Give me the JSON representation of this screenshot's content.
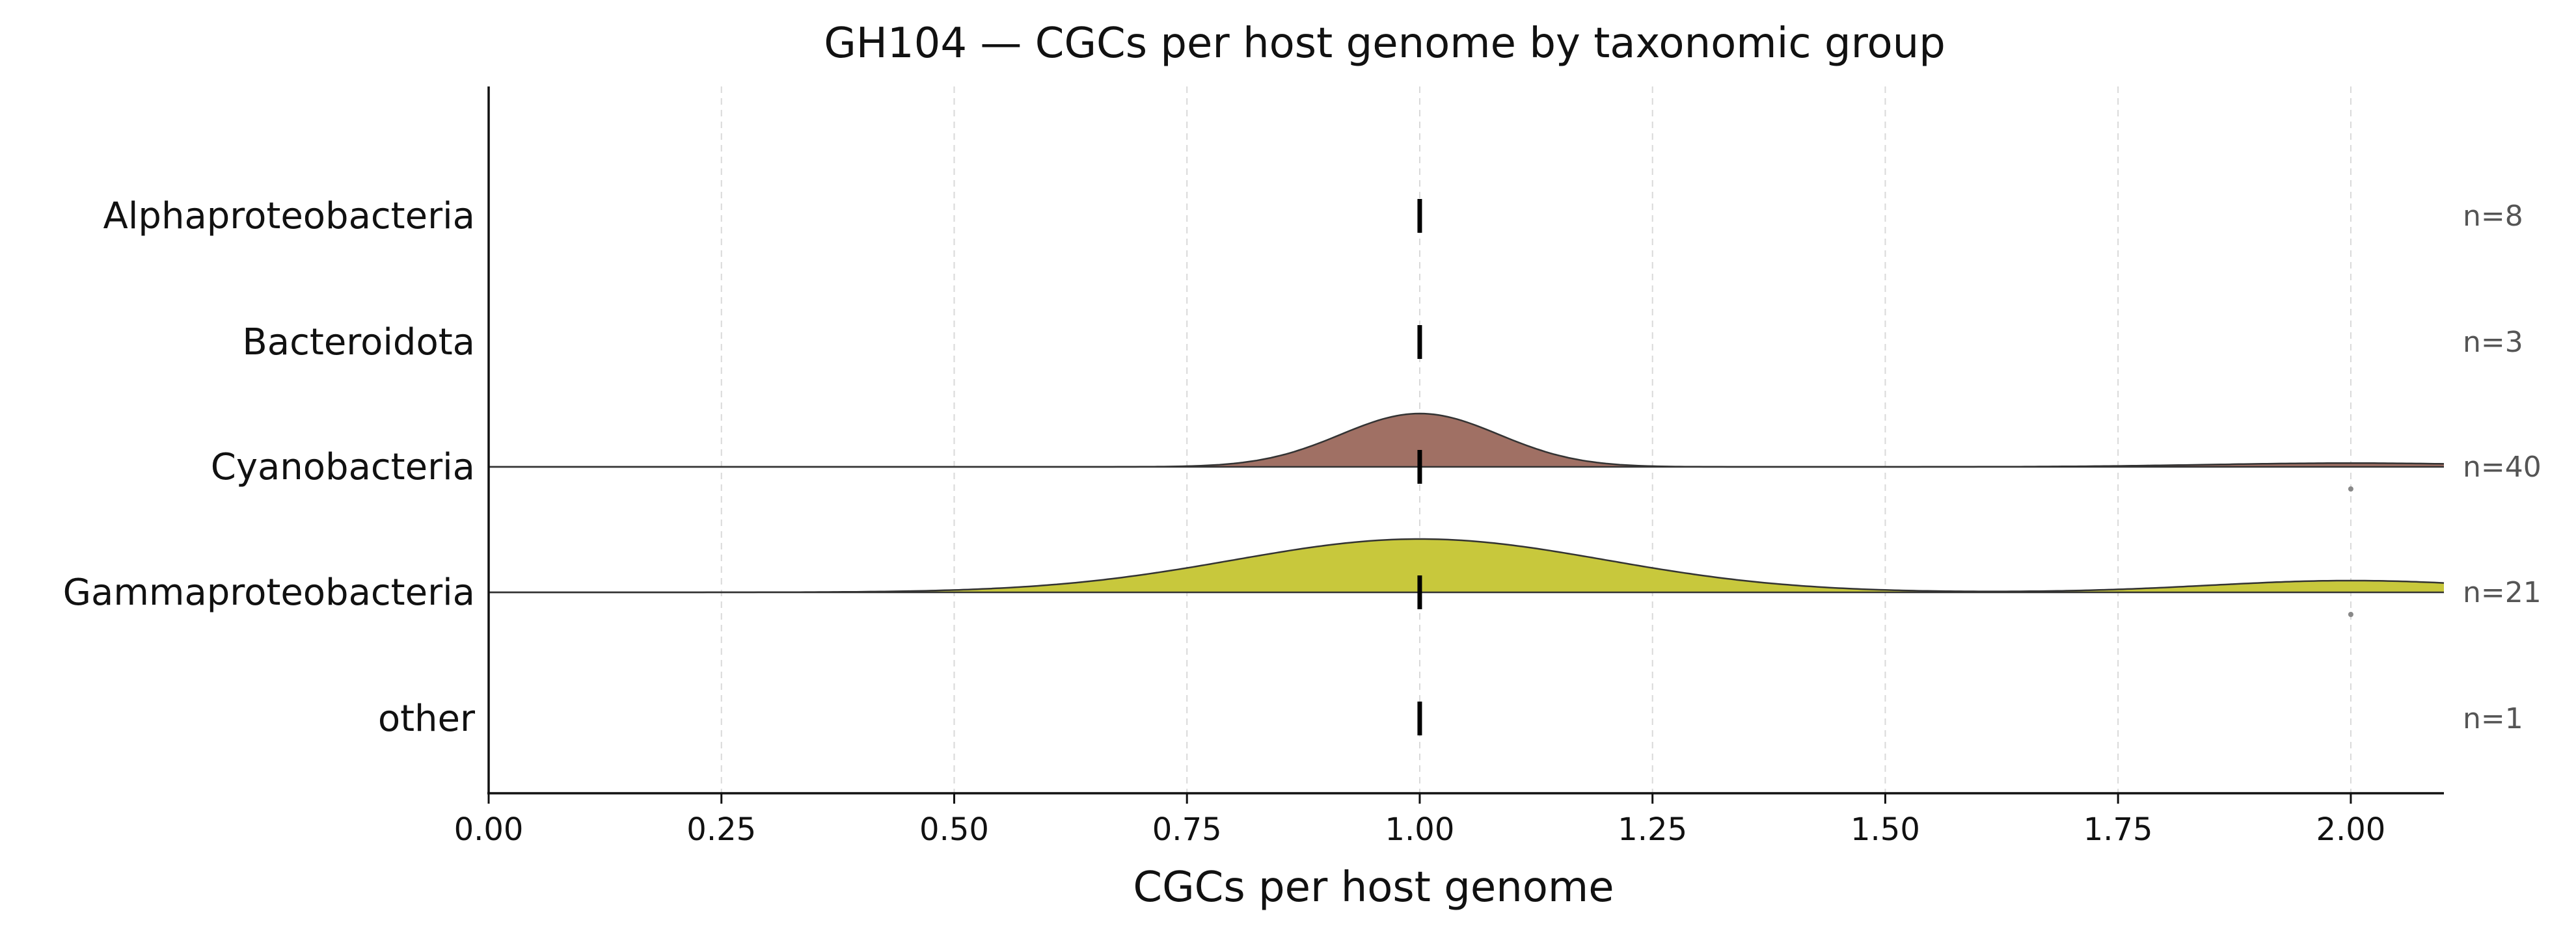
{
  "chart_data": {
    "type": "ridgeline",
    "title": "GH104 — CGCs per host genome by taxonomic group",
    "xlabel": "CGCs per host genome",
    "ylabel": "",
    "xlim": [
      0.0,
      2.1
    ],
    "x_ticks": [
      "0.00",
      "0.25",
      "0.50",
      "0.75",
      "1.00",
      "1.25",
      "1.50",
      "1.75",
      "2.00"
    ],
    "grid_x": true,
    "categories": [
      "Alphaproteobacteria",
      "Bacteroidota",
      "Cyanobacteria",
      "Gammaproteobacteria",
      "other"
    ],
    "series": [
      {
        "category": "Alphaproteobacteria",
        "n_label": "n=8",
        "median": 1.0,
        "has_density": false,
        "outliers": []
      },
      {
        "category": "Bacteroidota",
        "n_label": "n=3",
        "median": 1.0,
        "has_density": false,
        "outliers": []
      },
      {
        "category": "Cyanobacteria",
        "n_label": "n=40",
        "median": 1.0,
        "has_density": true,
        "color": "#a07064",
        "density": {
          "peaks": [
            {
              "center": 1.0,
              "sd": 0.085,
              "height": 1.0
            },
            {
              "center": 2.0,
              "sd": 0.15,
              "height": 0.07
            }
          ]
        },
        "outliers": [
          2.0
        ]
      },
      {
        "category": "Gammaproteobacteria",
        "n_label": "n=21",
        "median": 1.0,
        "has_density": true,
        "color": "#c8c83c",
        "density": {
          "peaks": [
            {
              "center": 1.0,
              "sd": 0.2,
              "height": 1.0
            },
            {
              "center": 2.0,
              "sd": 0.15,
              "height": 0.22
            }
          ]
        },
        "outliers": [
          2.0
        ]
      },
      {
        "category": "other",
        "n_label": "n=1",
        "median": 1.0,
        "has_density": false,
        "outliers": []
      }
    ]
  }
}
